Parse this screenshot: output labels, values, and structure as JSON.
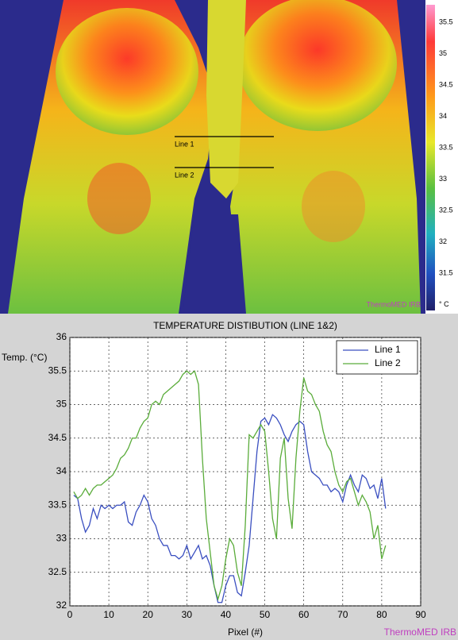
{
  "thermal_image": {
    "colorbar_ticks": [
      "35.5",
      "35",
      "34.5",
      "34",
      "33.5",
      "33",
      "32.5",
      "32",
      "31.5",
      "° C"
    ],
    "line_labels": [
      "Line 1",
      "Line 2"
    ],
    "watermark": "ThermoMED IRB"
  },
  "chart_data": {
    "type": "line",
    "title": "TEMPERATURE DISTIBUTION (LINE 1&2)",
    "x_label": "Pixel (#)",
    "y_label": "Temp. (°C)",
    "watermark": "ThermoMED IRB",
    "x": [
      1,
      2,
      3,
      4,
      5,
      6,
      7,
      8,
      9,
      10,
      11,
      12,
      13,
      14,
      15,
      16,
      17,
      18,
      19,
      20,
      21,
      22,
      23,
      24,
      25,
      26,
      27,
      28,
      29,
      30,
      31,
      32,
      33,
      34,
      35,
      36,
      37,
      38,
      39,
      40,
      41,
      42,
      43,
      44,
      45,
      46,
      47,
      48,
      49,
      50,
      51,
      52,
      53,
      54,
      55,
      56,
      57,
      58,
      59,
      60,
      61,
      62,
      63,
      64,
      65,
      66,
      67,
      68,
      69,
      70,
      71,
      72,
      73,
      74,
      75,
      76,
      77,
      78,
      79,
      80,
      81
    ],
    "series": [
      {
        "name": "Line 1",
        "color": "#3a4fc0",
        "values": [
          33.65,
          33.6,
          33.3,
          33.1,
          33.2,
          33.45,
          33.3,
          33.5,
          33.45,
          33.5,
          33.45,
          33.5,
          33.5,
          33.55,
          33.25,
          33.2,
          33.4,
          33.5,
          33.65,
          33.55,
          33.3,
          33.2,
          33.0,
          32.9,
          32.9,
          32.75,
          32.75,
          32.7,
          32.75,
          32.9,
          32.7,
          32.8,
          32.9,
          32.7,
          32.75,
          32.6,
          32.3,
          32.05,
          32.05,
          32.3,
          32.45,
          32.45,
          32.2,
          32.15,
          32.5,
          32.9,
          33.6,
          34.3,
          34.75,
          34.8,
          34.7,
          34.85,
          34.8,
          34.7,
          34.55,
          34.45,
          34.6,
          34.7,
          34.75,
          34.7,
          34.3,
          34.0,
          33.95,
          33.9,
          33.8,
          33.8,
          33.7,
          33.75,
          33.7,
          33.55,
          33.8,
          33.95,
          33.8,
          33.7,
          33.95,
          33.9,
          33.75,
          33.8,
          33.6,
          33.9,
          33.45
        ]
      },
      {
        "name": "Line 2",
        "color": "#5aac3a",
        "values": [
          33.7,
          33.6,
          33.65,
          33.75,
          33.65,
          33.75,
          33.8,
          33.8,
          33.85,
          33.9,
          33.95,
          34.05,
          34.2,
          34.25,
          34.35,
          34.5,
          34.5,
          34.65,
          34.75,
          34.8,
          35.0,
          35.05,
          35.0,
          35.15,
          35.2,
          35.25,
          35.3,
          35.35,
          35.45,
          35.5,
          35.45,
          35.5,
          35.3,
          34.2,
          33.3,
          32.8,
          32.3,
          32.1,
          32.3,
          32.7,
          33.0,
          32.9,
          32.5,
          32.3,
          33.2,
          34.55,
          34.5,
          34.6,
          34.7,
          34.6,
          34.0,
          33.3,
          33.0,
          34.2,
          34.5,
          33.6,
          33.15,
          34.2,
          34.9,
          35.4,
          35.2,
          35.15,
          35.0,
          34.9,
          34.6,
          34.4,
          34.3,
          34.0,
          33.8,
          33.7,
          33.85,
          33.9,
          33.7,
          33.5,
          33.65,
          33.55,
          33.4,
          33.0,
          33.2,
          32.7,
          32.9
        ]
      }
    ],
    "xlim": [
      0,
      90
    ],
    "xticks": [
      0,
      10,
      20,
      30,
      40,
      50,
      60,
      70,
      80,
      90
    ],
    "ylim": [
      32,
      36
    ],
    "yticks": [
      32,
      32.5,
      33,
      33.5,
      34,
      34.5,
      35,
      35.5,
      36
    ],
    "grid": true,
    "legend": "upper right"
  }
}
